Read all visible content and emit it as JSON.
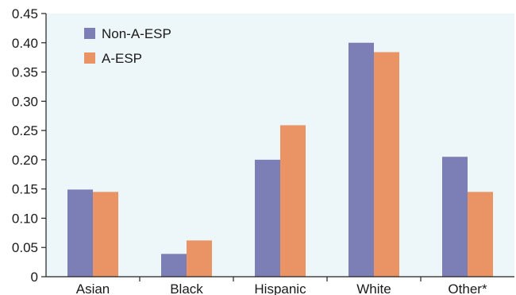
{
  "chart_data": {
    "type": "bar",
    "title": "",
    "xlabel": "",
    "ylabel": "",
    "categories": [
      "Asian",
      "Black",
      "Hispanic",
      "White",
      "Other*"
    ],
    "series": [
      {
        "name": "Non-A-ESP",
        "color": "#7b7fb5",
        "values": [
          0.149,
          0.039,
          0.2,
          0.4,
          0.205
        ]
      },
      {
        "name": "A-ESP",
        "color": "#ea9466",
        "values": [
          0.145,
          0.062,
          0.259,
          0.384,
          0.145
        ]
      }
    ],
    "ylim": [
      0,
      0.45
    ],
    "yticks": [
      "0",
      "0.05",
      "0.10",
      "0.15",
      "0.20",
      "0.25",
      "0.30",
      "0.35",
      "0.40",
      "0.45"
    ],
    "grid": false,
    "legend_position": "top-left",
    "plot_background": "#edf6f8"
  }
}
